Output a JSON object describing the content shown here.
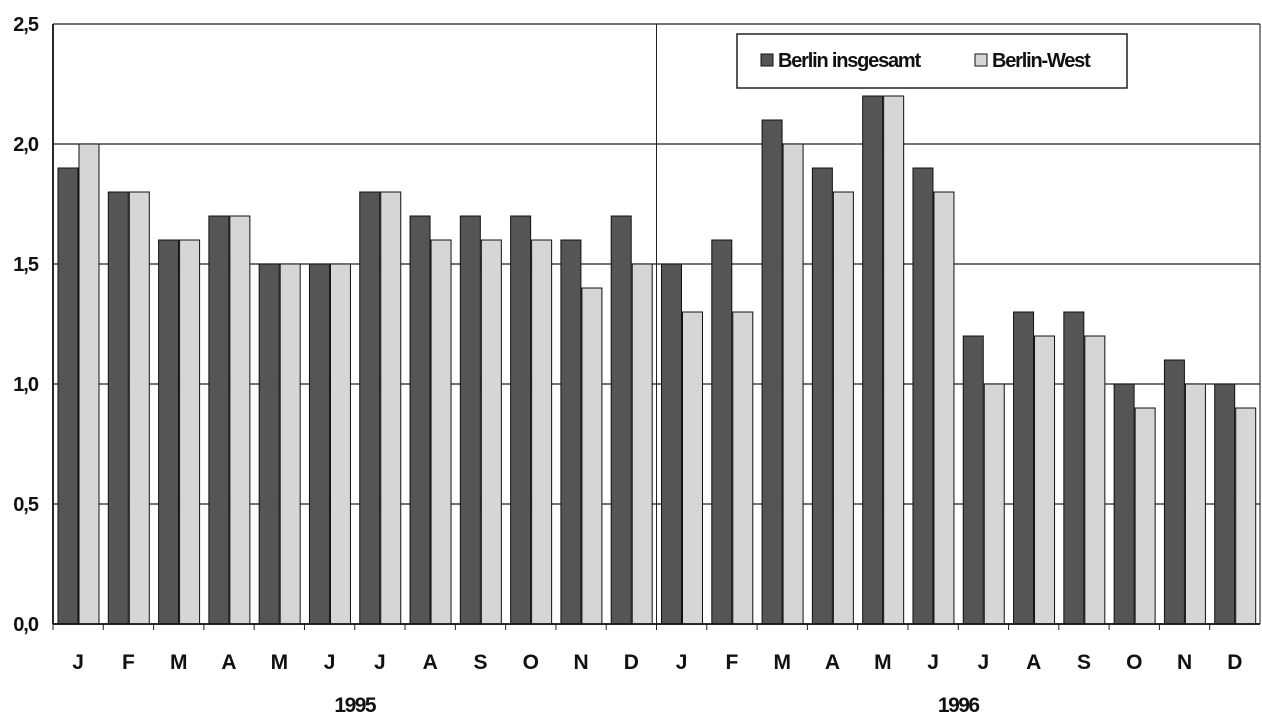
{
  "chart_data": {
    "type": "bar",
    "categories": [
      "J",
      "F",
      "M",
      "A",
      "M",
      "J",
      "J",
      "A",
      "S",
      "O",
      "N",
      "D",
      "J",
      "F",
      "M",
      "A",
      "M",
      "J",
      "J",
      "A",
      "S",
      "O",
      "N",
      "D"
    ],
    "groups": [
      "1995",
      "1996"
    ],
    "series": [
      {
        "name": "Berlin insgesamt",
        "color": "#555555",
        "values": [
          1.9,
          1.8,
          1.6,
          1.7,
          1.5,
          1.5,
          1.8,
          1.7,
          1.7,
          1.7,
          1.6,
          1.7,
          1.5,
          1.6,
          2.1,
          1.9,
          2.2,
          1.9,
          1.2,
          1.3,
          1.3,
          1.0,
          1.1,
          1.0
        ]
      },
      {
        "name": "Berlin-West",
        "color": "#d6d6d6",
        "values": [
          2.0,
          1.8,
          1.6,
          1.7,
          1.5,
          1.5,
          1.8,
          1.6,
          1.6,
          1.6,
          1.4,
          1.5,
          1.3,
          1.3,
          2.0,
          1.8,
          2.2,
          1.8,
          1.0,
          1.2,
          1.2,
          0.9,
          1.0,
          0.9
        ]
      }
    ],
    "yticks": [
      "0,0",
      "0,5",
      "1,0",
      "1,5",
      "2,0",
      "2,5"
    ],
    "ylim": [
      0,
      2.5
    ],
    "grid": true,
    "legend": "top-right"
  }
}
